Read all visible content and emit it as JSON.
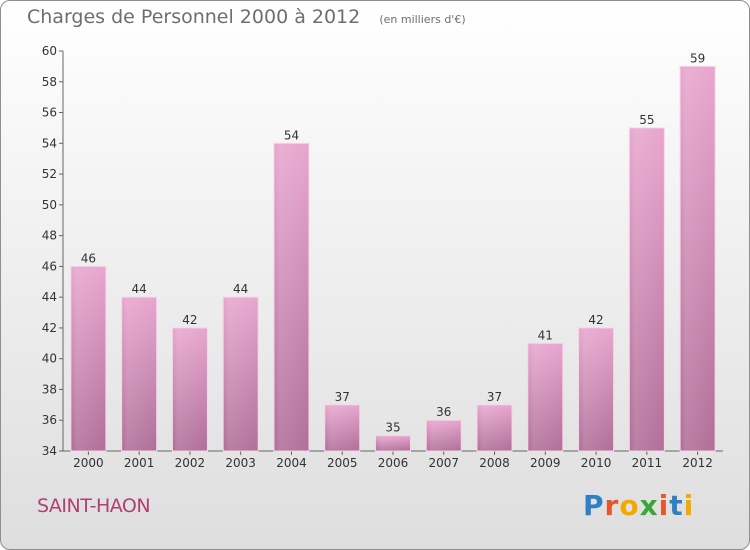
{
  "header": {
    "title": "Charges de Personnel 2000 à 2012",
    "subtitle": "(en milliers d'€)"
  },
  "footer": {
    "commune": "SAINT-HAON",
    "logo_text": "Proxiti"
  },
  "colors": {
    "bar_top": "#e8a6cf",
    "bar_bottom": "#b06f98",
    "commune": "#b04070",
    "logo": [
      "#2e7fc4",
      "#e4572e",
      "#f2a900",
      "#3aa63a",
      "#e4572e",
      "#2e7fc4",
      "#f2a900"
    ]
  },
  "chart_data": {
    "type": "bar",
    "title": "Charges de Personnel 2000 à 2012",
    "subtitle": "(en milliers d'€)",
    "categories": [
      "2000",
      "2001",
      "2002",
      "2003",
      "2004",
      "2005",
      "2006",
      "2007",
      "2008",
      "2009",
      "2010",
      "2011",
      "2012"
    ],
    "values": [
      46,
      44,
      42,
      44,
      54,
      37,
      35,
      36,
      37,
      41,
      42,
      55,
      59
    ],
    "ylim": [
      34,
      60
    ],
    "yticks": [
      34,
      36,
      38,
      40,
      42,
      44,
      46,
      48,
      50,
      52,
      54,
      56,
      58,
      60
    ],
    "grid": false,
    "legend": "none"
  }
}
